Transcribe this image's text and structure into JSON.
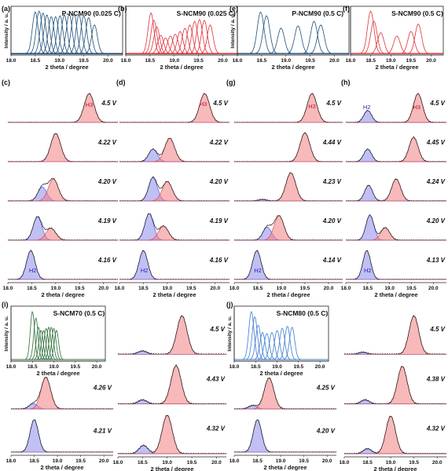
{
  "figure": {
    "colors": {
      "blue": "#1f4e79",
      "red": "#e0303a",
      "green": "#2d6e3a",
      "lightblue": "#3a7ad1",
      "blue_fill": "#4a4ae0",
      "red_fill": "#f08080",
      "purple_fill": "#a050a0",
      "black": "#1a1a1a"
    }
  },
  "chart_data": [
    {
      "type": "line",
      "panel": "(a)",
      "title": "P-NCM90 (0.025 C)",
      "xlabel": "2 theta / degree",
      "ylabel": "Intensity / a. u.",
      "xlim": [
        18.0,
        20.3
      ],
      "xticks": [
        "18.0",
        "18.5",
        "19.0",
        "19.5",
        "20.0"
      ],
      "series_color": "#1f4e79",
      "peak_centers": [
        18.5,
        18.58,
        18.66,
        18.74,
        18.83,
        18.92,
        19.01,
        19.1,
        19.2,
        19.3,
        19.4,
        19.5,
        19.6,
        19.72
      ],
      "peak_heights": [
        0.9,
        0.92,
        0.88,
        0.84,
        0.8,
        0.8,
        0.82,
        0.84,
        0.86,
        0.86,
        0.84,
        0.82,
        0.78,
        0.62
      ],
      "peak_width": 0.06
    },
    {
      "type": "line",
      "panel": "(b)",
      "title": "S-NCM90 (0.025 C)",
      "xlabel": "2 theta / degree",
      "ylabel": "",
      "xlim": [
        18.0,
        20.3
      ],
      "xticks": [
        "18.0",
        "18.5",
        "19.0",
        "19.5",
        "20.0"
      ],
      "series_color": "#e0303a",
      "peak_centers": [
        18.52,
        18.58,
        18.64,
        18.72,
        18.82,
        18.92,
        19.02,
        19.12,
        19.22,
        19.32,
        19.42,
        19.52,
        19.62,
        19.74
      ],
      "peak_heights": [
        0.88,
        0.72,
        0.58,
        0.4,
        0.34,
        0.38,
        0.42,
        0.48,
        0.55,
        0.62,
        0.7,
        0.74,
        0.72,
        0.62
      ],
      "peak_width": 0.06
    },
    {
      "type": "line",
      "panel": "(e)",
      "title": "P-NCM90 (0.5 C)",
      "xlabel": "2 theta / degree",
      "ylabel": "Intensity / a. u.",
      "xlim": [
        18.0,
        20.3
      ],
      "xticks": [
        "18.0",
        "18.5",
        "19.0",
        "19.5",
        "20.0"
      ],
      "series_color": "#1f4e79",
      "peak_centers": [
        18.48,
        18.6,
        18.9,
        19.25,
        19.58,
        19.72
      ],
      "peak_heights": [
        0.9,
        0.82,
        0.55,
        0.6,
        0.7,
        0.62
      ],
      "peak_width": 0.07
    },
    {
      "type": "line",
      "panel": "(f)",
      "title": "S-NCM90 (0.5 C)",
      "xlabel": "2 theta / degree",
      "ylabel": "",
      "xlim": [
        18.0,
        20.3
      ],
      "xticks": [
        "18.0",
        "18.5",
        "19.0",
        "19.5",
        "20.0"
      ],
      "series_color": "#e0303a",
      "peak_centers": [
        18.5,
        18.58,
        18.75,
        19.15,
        19.5,
        19.68
      ],
      "peak_heights": [
        0.92,
        0.7,
        0.45,
        0.38,
        0.48,
        0.64
      ],
      "peak_width": 0.08
    },
    {
      "type": "area",
      "panel": "(c)",
      "xlabel": "2 theta / degree",
      "xlim": [
        18.0,
        20.3
      ],
      "xticks": [
        "18.0",
        "18.5",
        "19.0",
        "19.5",
        "20.0"
      ],
      "rows": [
        {
          "voltage": "4.5 V",
          "label": "H3",
          "label_pos": [
            19.7,
            0.5
          ],
          "h2": [
            18.5,
            0.0
          ],
          "h3": [
            19.7,
            0.92
          ]
        },
        {
          "voltage": "4.22 V",
          "h2": [
            18.6,
            0.0
          ],
          "h3": [
            19.0,
            0.9
          ]
        },
        {
          "voltage": "4.20 V",
          "h2": [
            18.72,
            0.45
          ],
          "h3": [
            18.95,
            0.7
          ]
        },
        {
          "voltage": "4.19 V",
          "h2": [
            18.62,
            0.75
          ],
          "h3": [
            18.9,
            0.38
          ]
        },
        {
          "voltage": "4.16 V",
          "label": "H2",
          "label_pos": [
            18.52,
            0.22
          ],
          "h2": [
            18.48,
            0.92
          ],
          "h3": [
            19.0,
            0.0
          ]
        }
      ]
    },
    {
      "type": "area",
      "panel": "(d)",
      "xlabel": "2 theta / degree",
      "xlim": [
        18.0,
        20.3
      ],
      "xticks": [
        "18.0",
        "18.5",
        "19.0",
        "19.5",
        "20.0"
      ],
      "rows": [
        {
          "voltage": "4.5 V",
          "label": "H3",
          "label_pos": [
            19.75,
            0.52
          ],
          "h2": [
            18.5,
            0.0
          ],
          "h3": [
            19.78,
            0.92
          ]
        },
        {
          "voltage": "4.22 V",
          "h2": [
            18.7,
            0.4
          ],
          "h3": [
            19.05,
            0.75
          ]
        },
        {
          "voltage": "4.20 V",
          "h2": [
            18.7,
            0.75
          ],
          "h3": [
            19.0,
            0.62
          ]
        },
        {
          "voltage": "4.19 V",
          "h2": [
            18.62,
            0.85
          ],
          "h3": [
            18.92,
            0.45
          ]
        },
        {
          "voltage": "4.16 V",
          "label": "H2",
          "label_pos": [
            18.52,
            0.22
          ],
          "h2": [
            18.5,
            0.92
          ],
          "h3": [
            19.0,
            0.0
          ]
        }
      ]
    },
    {
      "type": "area",
      "panel": "(g)",
      "xlabel": "2 theta / degree",
      "xlim": [
        18.0,
        20.3
      ],
      "xticks": [
        "18.0",
        "18.5",
        "19.0",
        "19.5",
        "20.0"
      ],
      "rows": [
        {
          "voltage": "4.5 V",
          "label": "H3",
          "label_pos": [
            19.65,
            0.45
          ],
          "h2": [
            18.5,
            0.0
          ],
          "h3": [
            19.65,
            0.92
          ]
        },
        {
          "voltage": "4.44 V",
          "h2": [
            18.5,
            0.0
          ],
          "h3": [
            19.5,
            0.92
          ]
        },
        {
          "voltage": "4.23 V",
          "h2": [
            18.6,
            0.05
          ],
          "h3": [
            19.2,
            0.9
          ]
        },
        {
          "voltage": "4.20 V",
          "h2": [
            18.7,
            0.42
          ],
          "h3": [
            18.95,
            0.78
          ]
        },
        {
          "voltage": "4.14 V",
          "label": "H2",
          "label_pos": [
            18.5,
            0.22
          ],
          "h2": [
            18.48,
            0.92
          ],
          "h3": [
            19.0,
            0.0
          ]
        }
      ]
    },
    {
      "type": "area",
      "panel": "(h)",
      "xlabel": "2 theta / degree",
      "xlim": [
        18.0,
        20.3
      ],
      "xticks": [
        "18.0",
        "18.5",
        "19.0",
        "19.5",
        "20.0"
      ],
      "rows": [
        {
          "voltage": "4.5 V",
          "label": "H3",
          "label_pos": [
            19.62,
            0.42
          ],
          "label2": "H2",
          "label2_pos": [
            18.48,
            0.42
          ],
          "h2": [
            18.5,
            0.38
          ],
          "h3": [
            19.65,
            0.92
          ]
        },
        {
          "voltage": "4.45 V",
          "h2": [
            18.5,
            0.4
          ],
          "h3": [
            19.55,
            0.78
          ]
        },
        {
          "voltage": "4.24 V",
          "h2": [
            18.52,
            0.5
          ],
          "h3": [
            19.15,
            0.7
          ]
        },
        {
          "voltage": "4.20 V",
          "h2": [
            18.55,
            0.8
          ],
          "h3": [
            18.9,
            0.4
          ]
        },
        {
          "voltage": "4.13 V",
          "label": "H2",
          "label_pos": [
            18.5,
            0.22
          ],
          "h2": [
            18.48,
            0.92
          ],
          "h3": [
            19.0,
            0.0
          ]
        }
      ]
    },
    {
      "type": "line",
      "panel": "(i)",
      "title": "S-NCM70 (0.5 C)",
      "xlabel": "2 theta / degree",
      "ylabel": "Intensity / a. u.",
      "xlim": [
        18.0,
        20.2
      ],
      "xticks": [
        "18.0",
        "18.5",
        "19.0",
        "19.5",
        "20.0"
      ],
      "series_color": "#2d6e3a",
      "peak_centers": [
        18.5,
        18.58,
        18.64,
        18.7,
        18.76,
        18.82,
        18.88,
        18.94,
        19.0,
        19.06
      ],
      "peak_heights": [
        0.92,
        0.8,
        0.62,
        0.56,
        0.56,
        0.6,
        0.62,
        0.62,
        0.6,
        0.56
      ],
      "peak_width": 0.05
    },
    {
      "type": "area",
      "panel": "(i)-bottom",
      "xlabel": "2 theta / degree",
      "xlim": [
        18.0,
        20.2
      ],
      "xticks": [
        "18.0",
        "18.5",
        "19.0",
        "19.5",
        "20.0"
      ],
      "rows": [
        {
          "voltage": "4.26 V",
          "h2": [
            18.48,
            0.15
          ],
          "h3": [
            18.75,
            0.9
          ]
        },
        {
          "voltage": "4.21 V",
          "h2": [
            18.5,
            0.92
          ],
          "h3": [
            18.8,
            0.0
          ]
        }
      ]
    },
    {
      "type": "area",
      "panel": "(i)-right",
      "xlabel": "2 theta / degree",
      "xlim": [
        18.0,
        20.2
      ],
      "xticks": [
        "18.0",
        "18.5",
        "19.0",
        "19.5",
        "20.0"
      ],
      "rows": [
        {
          "voltage": "4.5 V",
          "h2": [
            18.5,
            0.08
          ],
          "h3": [
            19.3,
            0.92
          ]
        },
        {
          "voltage": "4.43 V",
          "h2": [
            18.5,
            0.1
          ],
          "h3": [
            19.18,
            0.92
          ]
        },
        {
          "voltage": "4.32 V",
          "h2": [
            18.52,
            0.2
          ],
          "h3": [
            19.0,
            0.92
          ]
        }
      ]
    },
    {
      "type": "line",
      "panel": "(j)",
      "title": "S-NCM80 (0.5 C)",
      "xlabel": "2 theta / degree",
      "ylabel": "Intensity / a. u.",
      "xlim": [
        18.0,
        20.2
      ],
      "xticks": [
        "18.0",
        "18.5",
        "19.0",
        "19.5",
        "20.0"
      ],
      "series_color": "#3a7ad1",
      "peak_centers": [
        18.4,
        18.48,
        18.56,
        18.66,
        18.76,
        18.88,
        19.0,
        19.12,
        19.24,
        19.35
      ],
      "peak_heights": [
        0.92,
        0.82,
        0.66,
        0.52,
        0.5,
        0.52,
        0.56,
        0.6,
        0.64,
        0.62
      ],
      "peak_width": 0.06
    },
    {
      "type": "area",
      "panel": "(j)-bottom",
      "xlabel": "2 theta / degree",
      "xlim": [
        18.0,
        20.2
      ],
      "xticks": [
        "18.0",
        "18.5",
        "19.0",
        "19.5",
        "20.0"
      ],
      "rows": [
        {
          "voltage": "4.25 V",
          "h2": [
            18.4,
            0.1
          ],
          "h3": [
            18.75,
            0.88
          ]
        },
        {
          "voltage": "4.20 V",
          "h2": [
            18.5,
            0.92
          ],
          "h3": [
            18.8,
            0.0
          ]
        }
      ]
    },
    {
      "type": "area",
      "panel": "(j)-right",
      "xlabel": "2 theta / degree",
      "xlim": [
        18.0,
        20.2
      ],
      "xticks": [
        "18.0",
        "18.5",
        "19.0",
        "19.5",
        "20.0"
      ],
      "rows": [
        {
          "voltage": "4.5 V",
          "h2": [
            18.4,
            0.05
          ],
          "h3": [
            19.5,
            0.92
          ]
        },
        {
          "voltage": "4.38 V",
          "h2": [
            18.45,
            0.1
          ],
          "h3": [
            19.25,
            0.9
          ]
        },
        {
          "voltage": "4.32 V",
          "h2": [
            18.5,
            0.12
          ],
          "h3": [
            19.0,
            0.9
          ]
        }
      ]
    }
  ]
}
